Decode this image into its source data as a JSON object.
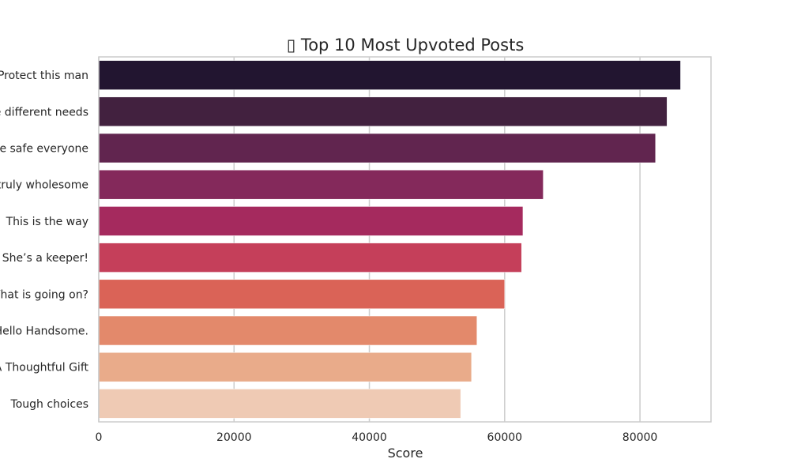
{
  "chart_data": {
    "type": "bar",
    "orientation": "horizontal",
    "title": "▯ Top 10 Most Upvoted Posts",
    "xlabel": "Score",
    "ylabel": "",
    "xlim": [
      0,
      90500
    ],
    "xticks": [
      0,
      20000,
      40000,
      60000,
      80000
    ],
    "xtick_labels": [
      "0",
      "20000",
      "40000",
      "60000",
      "80000"
    ],
    "grid": true,
    "categories": [
      "Protect this man",
      "e different needs",
      "e safe everyone",
      "truly wholesome",
      "This is the way",
      "She’s a keeper!",
      "Vhat is going on?",
      "Hello Handsome.",
      "A Thoughtful Gift",
      "Tough choices"
    ],
    "values": [
      86000,
      84000,
      82300,
      65700,
      62700,
      62500,
      60000,
      55900,
      55100,
      53500
    ],
    "colors": [
      "#221530",
      "#42213f",
      "#61254f",
      "#84295b",
      "#a52a5e",
      "#c53f5a",
      "#da6357",
      "#e3896b",
      "#e9ab8a",
      "#efcab4"
    ]
  }
}
